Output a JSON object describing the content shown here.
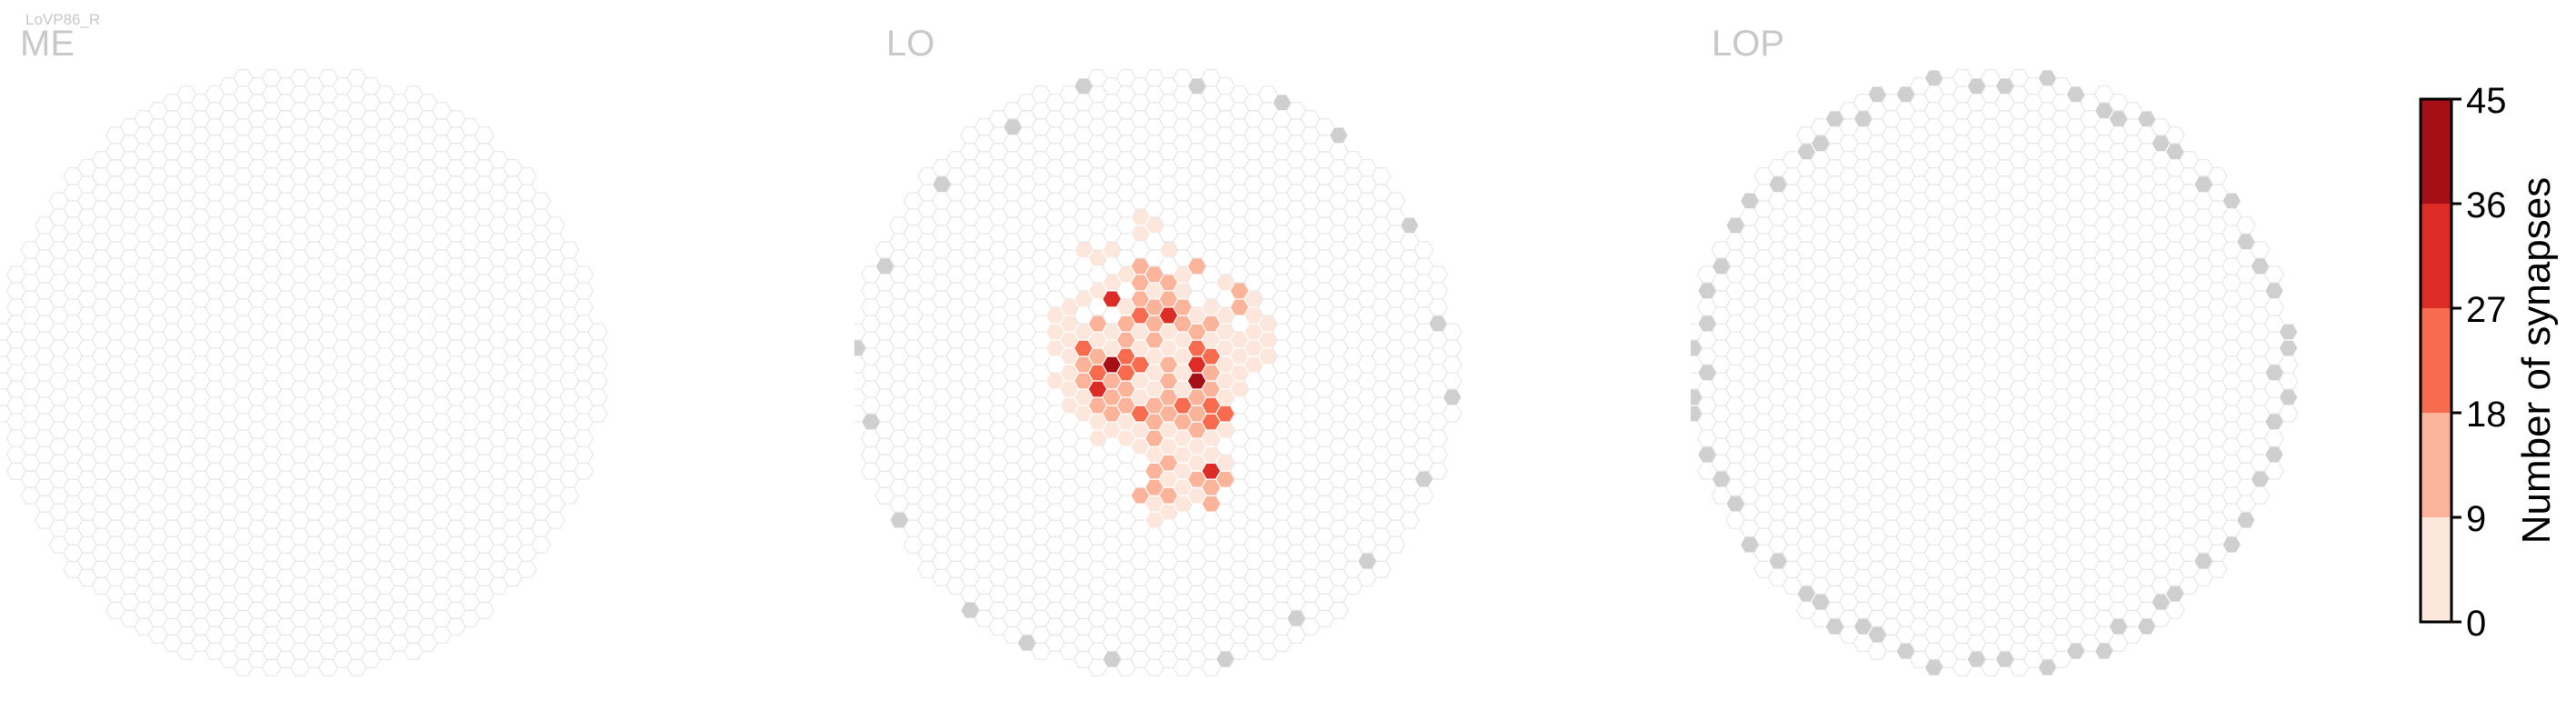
{
  "cell_label": "LoVP86_R",
  "colorbar": {
    "label": "Number of synapses",
    "ticks": [
      "0",
      "9",
      "18",
      "27",
      "36",
      "45"
    ],
    "tick_values": [
      0,
      9,
      18,
      27,
      36,
      45
    ],
    "bin_colors": [
      "#fde7dd",
      "#fbb39a",
      "#f86b4e",
      "#dd2b26",
      "#a50f15"
    ]
  },
  "colors": {
    "empty_fill": "#ffffff",
    "empty_stroke": "#e3e3e3",
    "out_of_range": "#cfcfcf",
    "cell_stroke": "#ffffff"
  },
  "chart_data": [
    {
      "type": "heatmap",
      "title": "ME",
      "value_range": [
        0,
        45
      ],
      "synapse_cells": [],
      "out_of_range_cells": 0
    },
    {
      "type": "heatmap",
      "title": "LO",
      "value_range": [
        0,
        45
      ],
      "synapse_cells": [
        {
          "col": -1,
          "row": 9,
          "value": 3
        },
        {
          "col": -1,
          "row": 8,
          "value": 2
        },
        {
          "col": 0,
          "row": 9,
          "value": 2
        },
        {
          "col": -5,
          "row": 7,
          "value": 3
        },
        {
          "col": -4,
          "row": 7,
          "value": 2
        },
        {
          "col": -3,
          "row": 7,
          "value": 4
        },
        {
          "col": 1,
          "row": 7,
          "value": 3
        },
        {
          "col": 2,
          "row": 6,
          "value": 8
        },
        {
          "col": 3,
          "row": 6,
          "value": 13
        },
        {
          "col": -2,
          "row": 6,
          "value": 5
        },
        {
          "col": -1,
          "row": 6,
          "value": 10
        },
        {
          "col": 0,
          "row": 6,
          "value": 12
        },
        {
          "col": -4,
          "row": 5,
          "value": 2
        },
        {
          "col": -3,
          "row": 5,
          "value": 3
        },
        {
          "col": -1,
          "row": 5,
          "value": 14
        },
        {
          "col": 0,
          "row": 5,
          "value": 6
        },
        {
          "col": 1,
          "row": 5,
          "value": 12
        },
        {
          "col": 2,
          "row": 5,
          "value": 3
        },
        {
          "col": 5,
          "row": 5,
          "value": 4
        },
        {
          "col": 6,
          "row": 5,
          "value": 13
        },
        {
          "col": -6,
          "row": 4,
          "value": 3
        },
        {
          "col": -5,
          "row": 4,
          "value": 2
        },
        {
          "col": -3,
          "row": 4,
          "value": 35
        },
        {
          "col": -2,
          "row": 4,
          "value": 5
        },
        {
          "col": -1,
          "row": 4,
          "value": 14
        },
        {
          "col": 0,
          "row": 4,
          "value": 18
        },
        {
          "col": 1,
          "row": 4,
          "value": 14
        },
        {
          "col": 2,
          "row": 4,
          "value": 10
        },
        {
          "col": 4,
          "row": 4,
          "value": 5
        },
        {
          "col": 6,
          "row": 4,
          "value": 16
        },
        {
          "col": 7,
          "row": 4,
          "value": 4
        },
        {
          "col": -7,
          "row": 3,
          "value": 2
        },
        {
          "col": -6,
          "row": 3,
          "value": 3
        },
        {
          "col": -4,
          "row": 3,
          "value": 11
        },
        {
          "col": -2,
          "row": 3,
          "value": 17
        },
        {
          "col": -1,
          "row": 3,
          "value": 25
        },
        {
          "col": 0,
          "row": 3,
          "value": 16
        },
        {
          "col": 1,
          "row": 3,
          "value": 34
        },
        {
          "col": 2,
          "row": 3,
          "value": 12
        },
        {
          "col": 3,
          "row": 3,
          "value": 7
        },
        {
          "col": 4,
          "row": 3,
          "value": 14
        },
        {
          "col": 5,
          "row": 3,
          "value": 5
        },
        {
          "col": 7,
          "row": 3,
          "value": 5
        },
        {
          "col": 8,
          "row": 3,
          "value": 3
        },
        {
          "col": -7,
          "row": 2,
          "value": 4
        },
        {
          "col": -6,
          "row": 2,
          "value": 3
        },
        {
          "col": -5,
          "row": 2,
          "value": 5
        },
        {
          "col": -4,
          "row": 2,
          "value": 2
        },
        {
          "col": -3,
          "row": 2,
          "value": 6
        },
        {
          "col": -2,
          "row": 2,
          "value": 11
        },
        {
          "col": -1,
          "row": 2,
          "value": 8
        },
        {
          "col": 0,
          "row": 2,
          "value": 14
        },
        {
          "col": 1,
          "row": 2,
          "value": 4
        },
        {
          "col": 2,
          "row": 2,
          "value": 6
        },
        {
          "col": 3,
          "row": 2,
          "value": 11
        },
        {
          "col": 4,
          "row": 2,
          "value": 4
        },
        {
          "col": 5,
          "row": 2,
          "value": 7
        },
        {
          "col": 6,
          "row": 2,
          "value": 3
        },
        {
          "col": 7,
          "row": 2,
          "value": 4
        },
        {
          "col": 8,
          "row": 2,
          "value": 4
        },
        {
          "col": -7,
          "row": 1,
          "value": 3
        },
        {
          "col": -6,
          "row": 1,
          "value": 2
        },
        {
          "col": -5,
          "row": 1,
          "value": 19
        },
        {
          "col": -4,
          "row": 1,
          "value": 13
        },
        {
          "col": -3,
          "row": 1,
          "value": 4
        },
        {
          "col": -2,
          "row": 1,
          "value": 21
        },
        {
          "col": -1,
          "row": 1,
          "value": 3
        },
        {
          "col": 0,
          "row": 1,
          "value": 5
        },
        {
          "col": 1,
          "row": 1,
          "value": 3
        },
        {
          "col": 2,
          "row": 1,
          "value": 8
        },
        {
          "col": 3,
          "row": 1,
          "value": 27
        },
        {
          "col": 4,
          "row": 1,
          "value": 22
        },
        {
          "col": 5,
          "row": 1,
          "value": 5
        },
        {
          "col": 6,
          "row": 1,
          "value": 3
        },
        {
          "col": 7,
          "row": 1,
          "value": 6
        },
        {
          "col": 8,
          "row": 1,
          "value": 3
        },
        {
          "col": -6,
          "row": 0,
          "value": 5
        },
        {
          "col": -5,
          "row": 0,
          "value": 11
        },
        {
          "col": -4,
          "row": 0,
          "value": 23
        },
        {
          "col": -3,
          "row": 0,
          "value": 42
        },
        {
          "col": -2,
          "row": 0,
          "value": 22
        },
        {
          "col": -1,
          "row": 0,
          "value": 27
        },
        {
          "col": 0,
          "row": 0,
          "value": 6
        },
        {
          "col": 1,
          "row": 0,
          "value": 13
        },
        {
          "col": 2,
          "row": 0,
          "value": 6
        },
        {
          "col": 3,
          "row": 0,
          "value": 34
        },
        {
          "col": 4,
          "row": 0,
          "value": 12
        },
        {
          "col": 5,
          "row": 0,
          "value": 6
        },
        {
          "col": 6,
          "row": 0,
          "value": 3
        },
        {
          "col": 7,
          "row": 0,
          "value": 5
        },
        {
          "col": -7,
          "row": -1,
          "value": 3
        },
        {
          "col": -6,
          "row": -1,
          "value": 4
        },
        {
          "col": -5,
          "row": -1,
          "value": 13
        },
        {
          "col": -4,
          "row": -1,
          "value": 34
        },
        {
          "col": -3,
          "row": -1,
          "value": 14
        },
        {
          "col": -2,
          "row": -1,
          "value": 12
        },
        {
          "col": -1,
          "row": -1,
          "value": 4
        },
        {
          "col": 0,
          "row": -1,
          "value": 6
        },
        {
          "col": 1,
          "row": -1,
          "value": 18
        },
        {
          "col": 2,
          "row": -1,
          "value": 4
        },
        {
          "col": 3,
          "row": -1,
          "value": 37
        },
        {
          "col": 4,
          "row": -1,
          "value": 14
        },
        {
          "col": 5,
          "row": -1,
          "value": 6
        },
        {
          "col": 6,
          "row": -1,
          "value": 3
        },
        {
          "col": -6,
          "row": -2,
          "value": 3
        },
        {
          "col": -5,
          "row": -2,
          "value": 5
        },
        {
          "col": -4,
          "row": -2,
          "value": 17
        },
        {
          "col": -3,
          "row": -2,
          "value": 12
        },
        {
          "col": -2,
          "row": -2,
          "value": 14
        },
        {
          "col": -1,
          "row": -2,
          "value": 4
        },
        {
          "col": 0,
          "row": -2,
          "value": 15
        },
        {
          "col": 1,
          "row": -2,
          "value": 13
        },
        {
          "col": 2,
          "row": -2,
          "value": 21
        },
        {
          "col": 3,
          "row": -2,
          "value": 15
        },
        {
          "col": 4,
          "row": -2,
          "value": 22
        },
        {
          "col": 5,
          "row": -2,
          "value": 5
        },
        {
          "col": -5,
          "row": -3,
          "value": 4
        },
        {
          "col": -4,
          "row": -3,
          "value": 3
        },
        {
          "col": -3,
          "row": -3,
          "value": 12
        },
        {
          "col": -2,
          "row": -3,
          "value": 5
        },
        {
          "col": -1,
          "row": -3,
          "value": 19
        },
        {
          "col": 0,
          "row": -3,
          "value": 12
        },
        {
          "col": 1,
          "row": -3,
          "value": 14
        },
        {
          "col": 2,
          "row": -3,
          "value": 10
        },
        {
          "col": 3,
          "row": -3,
          "value": 16
        },
        {
          "col": 4,
          "row": -3,
          "value": 20
        },
        {
          "col": 5,
          "row": -3,
          "value": 25
        },
        {
          "col": -4,
          "row": -4,
          "value": 3
        },
        {
          "col": -3,
          "row": -4,
          "value": 5
        },
        {
          "col": -2,
          "row": -4,
          "value": 4
        },
        {
          "col": -1,
          "row": -4,
          "value": 5
        },
        {
          "col": 0,
          "row": -4,
          "value": 13
        },
        {
          "col": 1,
          "row": -4,
          "value": 4
        },
        {
          "col": 2,
          "row": -4,
          "value": 6
        },
        {
          "col": 3,
          "row": -4,
          "value": 14
        },
        {
          "col": 4,
          "row": -4,
          "value": 3
        },
        {
          "col": 5,
          "row": -4,
          "value": 3
        },
        {
          "col": -1,
          "row": -5,
          "value": 2
        },
        {
          "col": 0,
          "row": -5,
          "value": 4
        },
        {
          "col": 1,
          "row": -5,
          "value": 5
        },
        {
          "col": 2,
          "row": -5,
          "value": 3
        },
        {
          "col": 3,
          "row": -5,
          "value": 4
        },
        {
          "col": 4,
          "row": -5,
          "value": 5
        },
        {
          "col": 0,
          "row": -6,
          "value": 11
        },
        {
          "col": 1,
          "row": -6,
          "value": 13
        },
        {
          "col": 2,
          "row": -6,
          "value": 4
        },
        {
          "col": 3,
          "row": -6,
          "value": 3
        },
        {
          "col": 4,
          "row": -6,
          "value": 30
        },
        {
          "col": 5,
          "row": -6,
          "value": 3
        },
        {
          "col": 0,
          "row": -7,
          "value": 12
        },
        {
          "col": 1,
          "row": -7,
          "value": 4
        },
        {
          "col": 2,
          "row": -7,
          "value": 3
        },
        {
          "col": 3,
          "row": -7,
          "value": 13
        },
        {
          "col": 4,
          "row": -7,
          "value": 13
        },
        {
          "col": 5,
          "row": -7,
          "value": 14
        },
        {
          "col": -1,
          "row": -8,
          "value": 16
        },
        {
          "col": 0,
          "row": -8,
          "value": 4
        },
        {
          "col": 1,
          "row": -8,
          "value": 12
        },
        {
          "col": 2,
          "row": -8,
          "value": 3
        },
        {
          "col": 3,
          "row": -8,
          "value": 4
        },
        {
          "col": 4,
          "row": -8,
          "value": 12
        },
        {
          "col": 0,
          "row": -9,
          "value": 3
        },
        {
          "col": 1,
          "row": -9,
          "value": 2
        }
      ],
      "out_of_range_cells": 20
    },
    {
      "type": "heatmap",
      "title": "LOP",
      "value_range": [
        0,
        45
      ],
      "synapse_cells": [],
      "out_of_range_cells": 62
    }
  ]
}
